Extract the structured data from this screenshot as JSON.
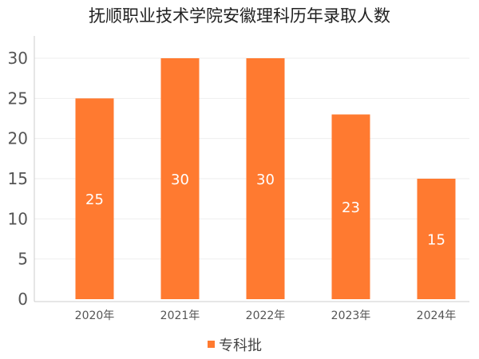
{
  "chart_data": {
    "type": "bar",
    "title": "抚顺职业技术学院安徽理科历年录取人数",
    "categories": [
      "2020年",
      "2021年",
      "2022年",
      "2023年",
      "2024年"
    ],
    "series": [
      {
        "name": "专科批",
        "values": [
          25,
          30,
          30,
          23,
          15
        ]
      }
    ],
    "ylim": [
      0,
      30
    ],
    "yticks": [
      0,
      5,
      10,
      15,
      20,
      25,
      30
    ],
    "grid": true,
    "legend": "bottom-center",
    "bar_color": "#ff7a30"
  }
}
